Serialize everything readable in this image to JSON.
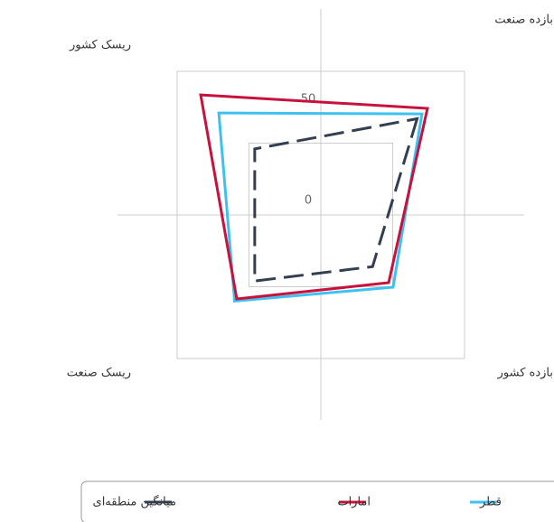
{
  "chart_data": {
    "type": "radar",
    "categories": [
      "بازده صنعت",
      "بازده کشور",
      "ریسک صنعت",
      "ریسک کشور"
    ],
    "series": [
      {
        "name": "قطر",
        "color": "#3fc1f0",
        "dash": false,
        "values": [
          20.4,
          0.3,
          10,
          21
        ]
      },
      {
        "name": "امارات",
        "color": "#c8123e",
        "dash": false,
        "values": [
          24.2,
          -2.8,
          8.5,
          33.6
        ]
      },
      {
        "name": "میانگین منطقه‌ای",
        "color": "#333f50",
        "dash": true,
        "values": [
          17,
          -14,
          -4,
          -4
        ]
      }
    ],
    "rlim": [
      -50,
      50
    ],
    "rticks": [
      0,
      50
    ],
    "grid": true
  }
}
